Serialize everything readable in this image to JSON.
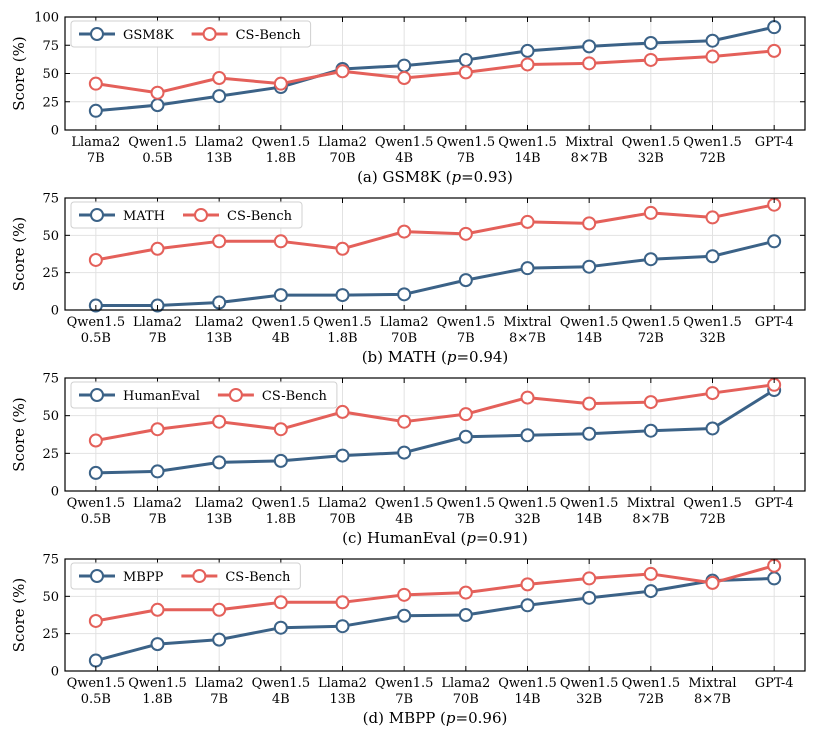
{
  "colors": {
    "blue": "#3b6287",
    "red": "#e4605a",
    "grid": "#e2e2e2",
    "axis": "#000000"
  },
  "chart_data": [
    {
      "type": "line",
      "caption_pre": "(a) GSM8K (",
      "caption_p": "p",
      "caption_post": "=0.93)",
      "ylabel": "Score (%)",
      "ylim": [
        0,
        100
      ],
      "yticks": [
        0,
        25,
        50,
        75,
        100
      ],
      "grid": true,
      "legend_position": "top-left",
      "categories": [
        [
          "Llama2",
          "7B"
        ],
        [
          "Qwen1.5",
          "0.5B"
        ],
        [
          "Llama2",
          "13B"
        ],
        [
          "Qwen1.5",
          "1.8B"
        ],
        [
          "Llama2",
          "70B"
        ],
        [
          "Qwen1.5",
          "4B"
        ],
        [
          "Qwen1.5",
          "7B"
        ],
        [
          "Qwen1.5",
          "14B"
        ],
        [
          "Mixtral",
          "8×7B"
        ],
        [
          "Qwen1.5",
          "32B"
        ],
        [
          "Qwen1.5",
          "72B"
        ],
        [
          "GPT-4",
          ""
        ]
      ],
      "series": [
        {
          "name": "GSM8K",
          "color": "blue",
          "values": [
            17,
            22,
            30,
            38,
            54,
            57,
            62,
            70,
            74,
            77,
            79,
            91
          ]
        },
        {
          "name": "CS-Bench",
          "color": "red",
          "values": [
            41,
            33,
            46,
            41,
            52,
            46,
            51,
            58,
            59,
            62,
            65,
            70
          ]
        }
      ]
    },
    {
      "type": "line",
      "caption_pre": "(b) MATH (",
      "caption_p": "p",
      "caption_post": "=0.94)",
      "ylabel": "Score (%)",
      "ylim": [
        0,
        75
      ],
      "yticks": [
        0,
        25,
        50,
        75
      ],
      "grid": true,
      "legend_position": "top-left",
      "categories": [
        [
          "Qwen1.5",
          "0.5B"
        ],
        [
          "Llama2",
          "7B"
        ],
        [
          "Llama2",
          "13B"
        ],
        [
          "Qwen1.5",
          "4B"
        ],
        [
          "Qwen1.5",
          "1.8B"
        ],
        [
          "Llama2",
          "70B"
        ],
        [
          "Qwen1.5",
          "7B"
        ],
        [
          "Mixtral",
          "8×7B"
        ],
        [
          "Qwen1.5",
          "14B"
        ],
        [
          "Qwen1.5",
          "72B"
        ],
        [
          "Qwen1.5",
          "32B"
        ],
        [
          "GPT-4",
          ""
        ]
      ],
      "series": [
        {
          "name": "MATH",
          "color": "blue",
          "values": [
            3,
            3,
            5,
            10,
            10,
            10.5,
            20,
            28,
            29,
            34,
            36,
            46
          ]
        },
        {
          "name": "CS-Bench",
          "color": "red",
          "values": [
            33.5,
            41,
            46,
            46,
            41,
            52.5,
            51,
            59,
            58,
            65,
            62,
            70.5
          ]
        }
      ]
    },
    {
      "type": "line",
      "caption_pre": "(c) HumanEval (",
      "caption_p": "p",
      "caption_post": "=0.91)",
      "ylabel": "Score (%)",
      "ylim": [
        0,
        75
      ],
      "yticks": [
        0,
        25,
        50,
        75
      ],
      "grid": true,
      "legend_position": "top-left",
      "categories": [
        [
          "Qwen1.5",
          "0.5B"
        ],
        [
          "Llama2",
          "7B"
        ],
        [
          "Llama2",
          "13B"
        ],
        [
          "Qwen1.5",
          "1.8B"
        ],
        [
          "Llama2",
          "70B"
        ],
        [
          "Qwen1.5",
          "4B"
        ],
        [
          "Qwen1.5",
          "7B"
        ],
        [
          "Qwen1.5",
          "32B"
        ],
        [
          "Qwen1.5",
          "14B"
        ],
        [
          "Mixtral",
          "8×7B"
        ],
        [
          "Qwen1.5",
          "72B"
        ],
        [
          "GPT-4",
          ""
        ]
      ],
      "series": [
        {
          "name": "HumanEval",
          "color": "blue",
          "values": [
            12,
            13,
            19,
            20,
            23.5,
            25.5,
            36,
            37,
            38,
            40,
            41.5,
            67
          ]
        },
        {
          "name": "CS-Bench",
          "color": "red",
          "values": [
            33.5,
            41,
            46,
            41,
            52.5,
            46,
            51,
            62,
            58,
            59,
            65,
            70.5
          ]
        }
      ]
    },
    {
      "type": "line",
      "caption_pre": "(d) MBPP (",
      "caption_p": "p",
      "caption_post": "=0.96)",
      "ylabel": "Score (%)",
      "ylim": [
        0,
        75
      ],
      "yticks": [
        0,
        25,
        50,
        75
      ],
      "grid": true,
      "legend_position": "top-left",
      "categories": [
        [
          "Qwen1.5",
          "0.5B"
        ],
        [
          "Qwen1.5",
          "1.8B"
        ],
        [
          "Llama2",
          "7B"
        ],
        [
          "Qwen1.5",
          "4B"
        ],
        [
          "Llama2",
          "13B"
        ],
        [
          "Qwen1.5",
          "7B"
        ],
        [
          "Llama2",
          "70B"
        ],
        [
          "Qwen1.5",
          "14B"
        ],
        [
          "Qwen1.5",
          "32B"
        ],
        [
          "Qwen1.5",
          "72B"
        ],
        [
          "Mixtral",
          "8×7B"
        ],
        [
          "GPT-4",
          ""
        ]
      ],
      "series": [
        {
          "name": "MBPP",
          "color": "blue",
          "values": [
            7,
            18,
            21,
            29,
            30,
            37,
            37.5,
            44,
            49,
            53.5,
            60.5,
            62
          ]
        },
        {
          "name": "CS-Bench",
          "color": "red",
          "values": [
            33.5,
            41,
            41,
            46,
            46,
            51,
            52.5,
            58,
            62,
            65,
            59,
            70.5
          ]
        }
      ]
    }
  ]
}
